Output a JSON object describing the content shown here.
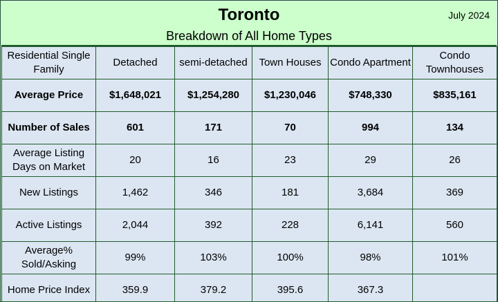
{
  "header": {
    "title": "Toronto",
    "subtitle": "Breakdown of All Home Types",
    "date": "July 2024"
  },
  "table": {
    "columns": [
      "Residential Single Family",
      "Detached",
      "semi-detached",
      "Town Houses",
      "Condo Apartment",
      "Condo Townhouses"
    ],
    "rows": [
      {
        "label": "Average Price",
        "bold": true,
        "values": [
          "$1,648,021",
          "$1,254,280",
          "$1,230,046",
          "$748,330",
          "$835,161"
        ]
      },
      {
        "label": "Number of Sales",
        "bold": true,
        "values": [
          "601",
          "171",
          "70",
          "994",
          "134"
        ]
      },
      {
        "label": "Average Listing Days on Market",
        "bold": false,
        "values": [
          "20",
          "16",
          "23",
          "29",
          "26"
        ]
      },
      {
        "label": "New Listings",
        "bold": false,
        "values": [
          "1,462",
          "346",
          "181",
          "3,684",
          "369"
        ]
      },
      {
        "label": "Active Listings",
        "bold": false,
        "values": [
          "2,044",
          "392",
          "228",
          "6,141",
          "560"
        ]
      },
      {
        "label": "Average% Sold/Asking",
        "bold": false,
        "values": [
          "99%",
          "103%",
          "100%",
          "98%",
          "101%"
        ]
      },
      {
        "label": "Home Price Index",
        "bold": false,
        "values": [
          "359.9",
          "379.2",
          "395.6",
          "367.3",
          ""
        ]
      }
    ]
  },
  "colors": {
    "header_bg": "#ccffcc",
    "table_bg": "#dce6f2",
    "border": "#1f5b2a"
  }
}
